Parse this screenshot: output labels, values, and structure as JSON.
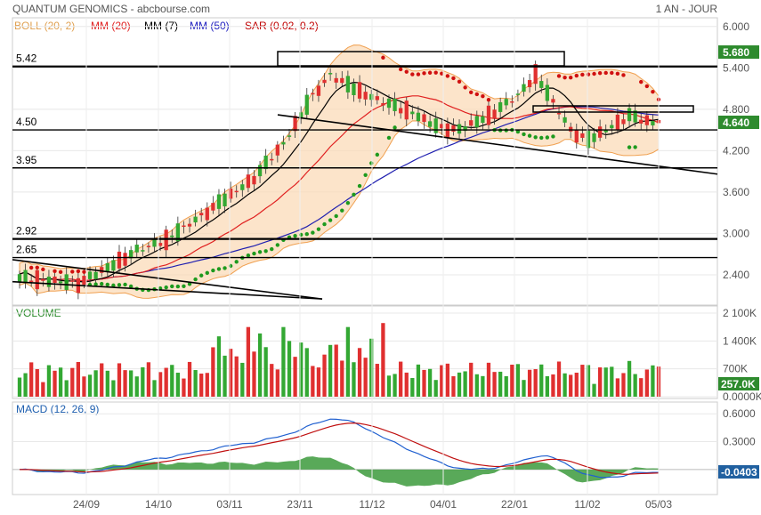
{
  "header": {
    "title": "QUANTUM GENOMICS - abcbourse.com",
    "period": "1 AN - JOUR"
  },
  "legend": {
    "items": [
      {
        "label": "BOLL (20, 2)",
        "color": "#f0b060"
      },
      {
        "label": "MM (20)",
        "color": "#e02020"
      },
      {
        "label": "MM (7)",
        "color": "#000000"
      },
      {
        "label": "MM (50)",
        "color": "#2020c0"
      },
      {
        "label": "SAR (0.02, 0.2)",
        "color": "#c00000"
      }
    ]
  },
  "colors": {
    "up": "#33a833",
    "down": "#e03030",
    "boll_fill": "#fbd9b4",
    "boll_line": "#f0a050",
    "mm20": "#e02020",
    "mm7": "#000000",
    "mm50": "#2020b0",
    "sar_up": "#1e9a1e",
    "sar_down": "#d01010",
    "badge": "#2e8b2e",
    "macd_line": "#2060d0",
    "signal_line": "#c01010",
    "hist": "#3c9a3c"
  },
  "chart_data": [
    {
      "type": "candlestick",
      "name": "price",
      "x_ticks": [
        "24/09",
        "14/10",
        "03/11",
        "23/11",
        "11/12",
        "04/01",
        "22/01",
        "11/02",
        "05/03"
      ],
      "y_ticks": [
        "6.000",
        "5.400",
        "4.800",
        "4.200",
        "3.600",
        "3.000",
        "2.400"
      ],
      "ylim": [
        2.0,
        6.1
      ],
      "last_price": "5.680",
      "last_close_label": "4.640",
      "levels": [
        {
          "label": "5.42",
          "value": 5.42
        },
        {
          "label": "4.50",
          "value": 4.5
        },
        {
          "label": "3.95",
          "value": 3.95
        },
        {
          "label": "2.92",
          "value": 2.92
        },
        {
          "label": "2.65",
          "value": 2.65
        }
      ],
      "indicators": [
        "BOLL (20, 2)",
        "MM (20)",
        "MM (7)",
        "MM (50)",
        "SAR (0.02, 0.2)"
      ]
    },
    {
      "type": "bar",
      "name": "volume",
      "title": "VOLUME",
      "y_ticks": [
        "2 100K",
        "1 400K",
        "700K",
        "0.0000K"
      ],
      "ylim": [
        0,
        2100
      ],
      "last_value_label": "257.0K"
    },
    {
      "type": "line",
      "name": "macd",
      "title": "MACD (12, 26, 9)",
      "y_ticks": [
        "0.6000",
        "0.3000"
      ],
      "ylim": [
        -0.25,
        0.65
      ],
      "last_value_label": "-0.0403"
    }
  ]
}
